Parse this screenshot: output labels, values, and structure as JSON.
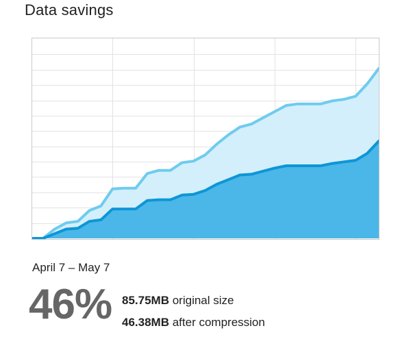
{
  "header": {
    "title": "Data savings"
  },
  "period": {
    "label": "April 7 – May 7"
  },
  "summary": {
    "percent": "46%",
    "original_value": "85.75MB",
    "original_text": "original size",
    "compressed_value": "46.38MB",
    "compressed_text": "after compression"
  },
  "chart_data": {
    "type": "area",
    "title": "",
    "xlabel": "",
    "ylabel": "",
    "x": [
      0,
      1,
      2,
      3,
      4,
      5,
      6,
      7,
      8,
      9,
      10,
      11,
      12,
      13,
      14,
      15,
      16,
      17,
      18,
      19,
      20,
      21,
      22,
      23,
      24,
      25,
      26,
      27,
      28,
      29,
      30
    ],
    "xlim": [
      0,
      30
    ],
    "ylim": [
      0,
      10
    ],
    "grid": true,
    "series": [
      {
        "values": [
          0,
          0,
          0.6,
          1.0,
          1.1,
          1.8,
          2.1,
          3.2,
          3.25,
          3.25,
          4.2,
          4.4,
          4.4,
          4.9,
          5.0,
          5.4,
          6.1,
          6.7,
          7.2,
          7.4,
          7.8,
          8.2,
          8.6,
          8.7,
          8.7,
          8.7,
          8.9,
          9.0,
          9.2,
          10.0,
          11.0
        ],
        "color_line": "#6fcbee",
        "color_fill": "#d3effb"
      },
      {
        "values": [
          0,
          0,
          0.3,
          0.6,
          0.65,
          1.1,
          1.2,
          1.9,
          1.9,
          1.9,
          2.45,
          2.5,
          2.5,
          2.8,
          2.85,
          3.1,
          3.5,
          3.8,
          4.1,
          4.15,
          4.35,
          4.55,
          4.7,
          4.7,
          4.7,
          4.7,
          4.85,
          4.95,
          5.05,
          5.5,
          6.3
        ],
        "color_line": "#0d96d6",
        "color_fill": "#4ab7e8"
      }
    ]
  },
  "colors": {
    "grid": "#e3e3e3",
    "frame": "#c9c9c9"
  }
}
